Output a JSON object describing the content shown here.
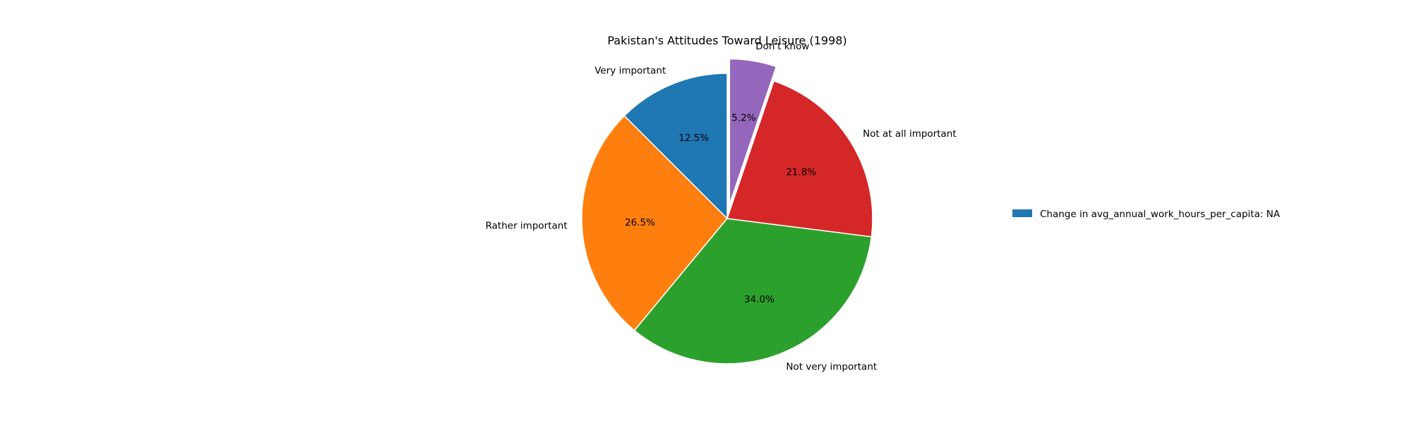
{
  "chart_data": {
    "type": "pie",
    "title": "Pakistan's Attitudes Toward Leisure (1998)",
    "categories": [
      "Very important",
      "Rather important",
      "Not very important",
      "Not at all important",
      "Don't know"
    ],
    "values": [
      12.5,
      26.5,
      34.0,
      21.8,
      5.2
    ],
    "value_labels": [
      "12.5%",
      "26.5%",
      "34.0%",
      "21.8%",
      "5.2%"
    ],
    "colors": [
      "#1f77b4",
      "#ff7f0e",
      "#2ca02c",
      "#d62728",
      "#9467bd"
    ],
    "exploded": [
      false,
      false,
      false,
      false,
      true
    ],
    "start_angle_deg": 90,
    "direction": "counterclockwise",
    "legend": {
      "placement": "right",
      "entries": [
        {
          "label": "Change in avg_annual_work_hours_per_capita: NA",
          "color": "#1f77b4"
        }
      ]
    }
  }
}
